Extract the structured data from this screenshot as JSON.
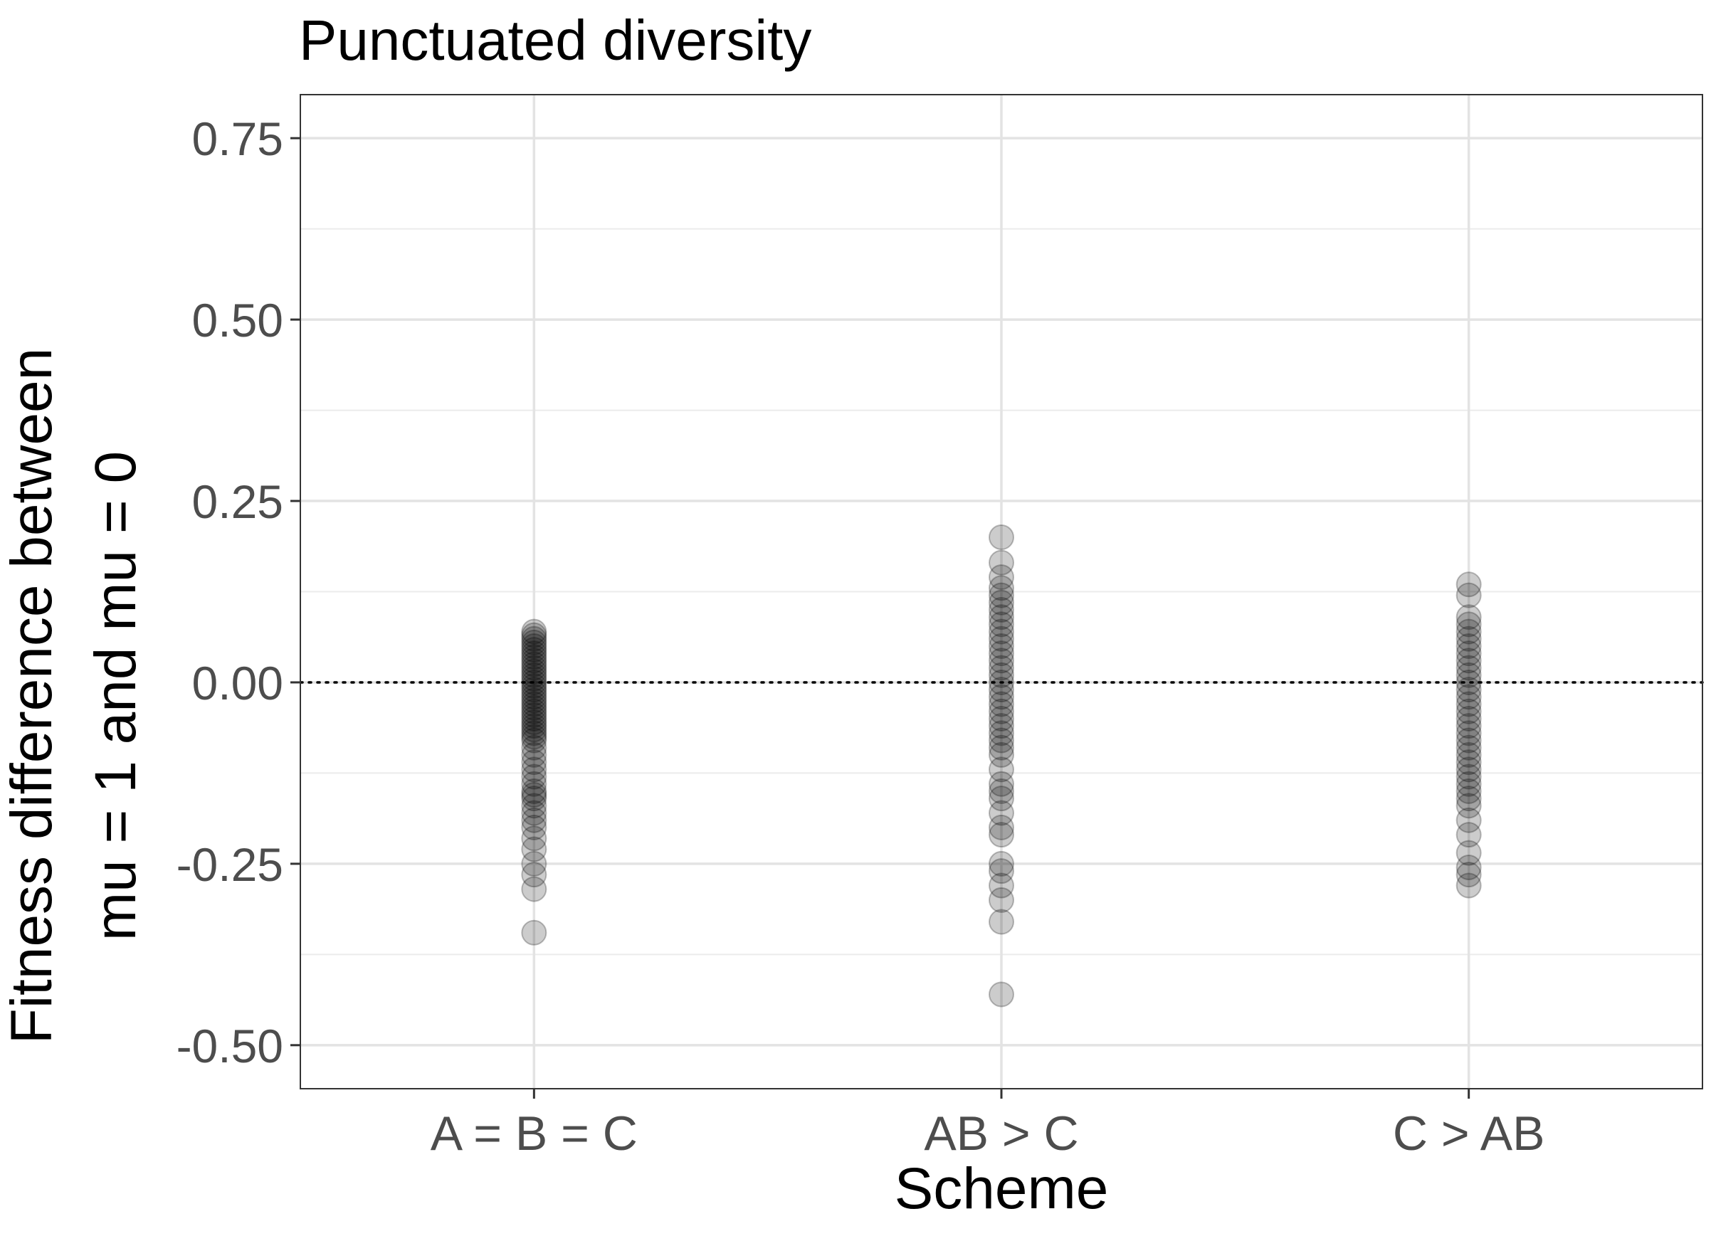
{
  "chart_data": {
    "type": "scatter",
    "title": "Punctuated diversity",
    "xlabel": "Scheme",
    "ylabel_lines": [
      "Fitness difference between",
      "mu = 1 and mu = 0"
    ],
    "categories": [
      "A = B = C",
      "AB > C",
      "C > AB"
    ],
    "ylim": [
      -0.56,
      0.81
    ],
    "yticks": [
      -0.5,
      -0.25,
      0.0,
      0.25,
      0.5,
      0.75
    ],
    "ytick_labels": [
      "-0.50",
      "-0.25",
      "0.00",
      "0.25",
      "0.50",
      "0.75"
    ],
    "reference_line": {
      "y": 0.0,
      "style": "dotted"
    },
    "grid": true,
    "point_color": "#000000",
    "point_alpha": 0.2,
    "series": [
      {
        "category": "A = B = C",
        "values": [
          0.07,
          0.065,
          0.06,
          0.055,
          0.05,
          0.045,
          0.04,
          0.035,
          0.03,
          0.025,
          0.02,
          0.015,
          0.01,
          0.005,
          0.0,
          -0.005,
          -0.01,
          -0.015,
          -0.02,
          -0.025,
          -0.03,
          -0.035,
          -0.04,
          -0.045,
          -0.05,
          -0.055,
          -0.06,
          -0.065,
          -0.07,
          -0.075,
          -0.08,
          -0.09,
          -0.1,
          -0.11,
          -0.12,
          -0.13,
          -0.14,
          -0.15,
          -0.155,
          -0.16,
          -0.17,
          -0.18,
          -0.19,
          -0.2,
          -0.215,
          -0.23,
          -0.25,
          -0.265,
          -0.285,
          -0.345
        ]
      },
      {
        "category": "AB > C",
        "values": [
          0.2,
          0.165,
          0.145,
          0.13,
          0.12,
          0.11,
          0.1,
          0.09,
          0.08,
          0.07,
          0.06,
          0.05,
          0.04,
          0.03,
          0.02,
          0.01,
          0.0,
          -0.01,
          -0.02,
          -0.03,
          -0.04,
          -0.05,
          -0.06,
          -0.07,
          -0.08,
          -0.09,
          -0.1,
          -0.12,
          -0.14,
          -0.15,
          -0.16,
          -0.18,
          -0.2,
          -0.21,
          -0.25,
          -0.26,
          -0.28,
          -0.3,
          -0.33,
          -0.43
        ]
      },
      {
        "category": "C > AB",
        "values": [
          0.135,
          0.12,
          0.09,
          0.08,
          0.07,
          0.06,
          0.05,
          0.04,
          0.03,
          0.02,
          0.01,
          0.0,
          -0.01,
          -0.02,
          -0.03,
          -0.04,
          -0.05,
          -0.06,
          -0.07,
          -0.08,
          -0.09,
          -0.1,
          -0.11,
          -0.12,
          -0.13,
          -0.14,
          -0.15,
          -0.16,
          -0.17,
          -0.19,
          -0.21,
          -0.235,
          -0.255,
          -0.265,
          -0.28
        ]
      }
    ]
  }
}
